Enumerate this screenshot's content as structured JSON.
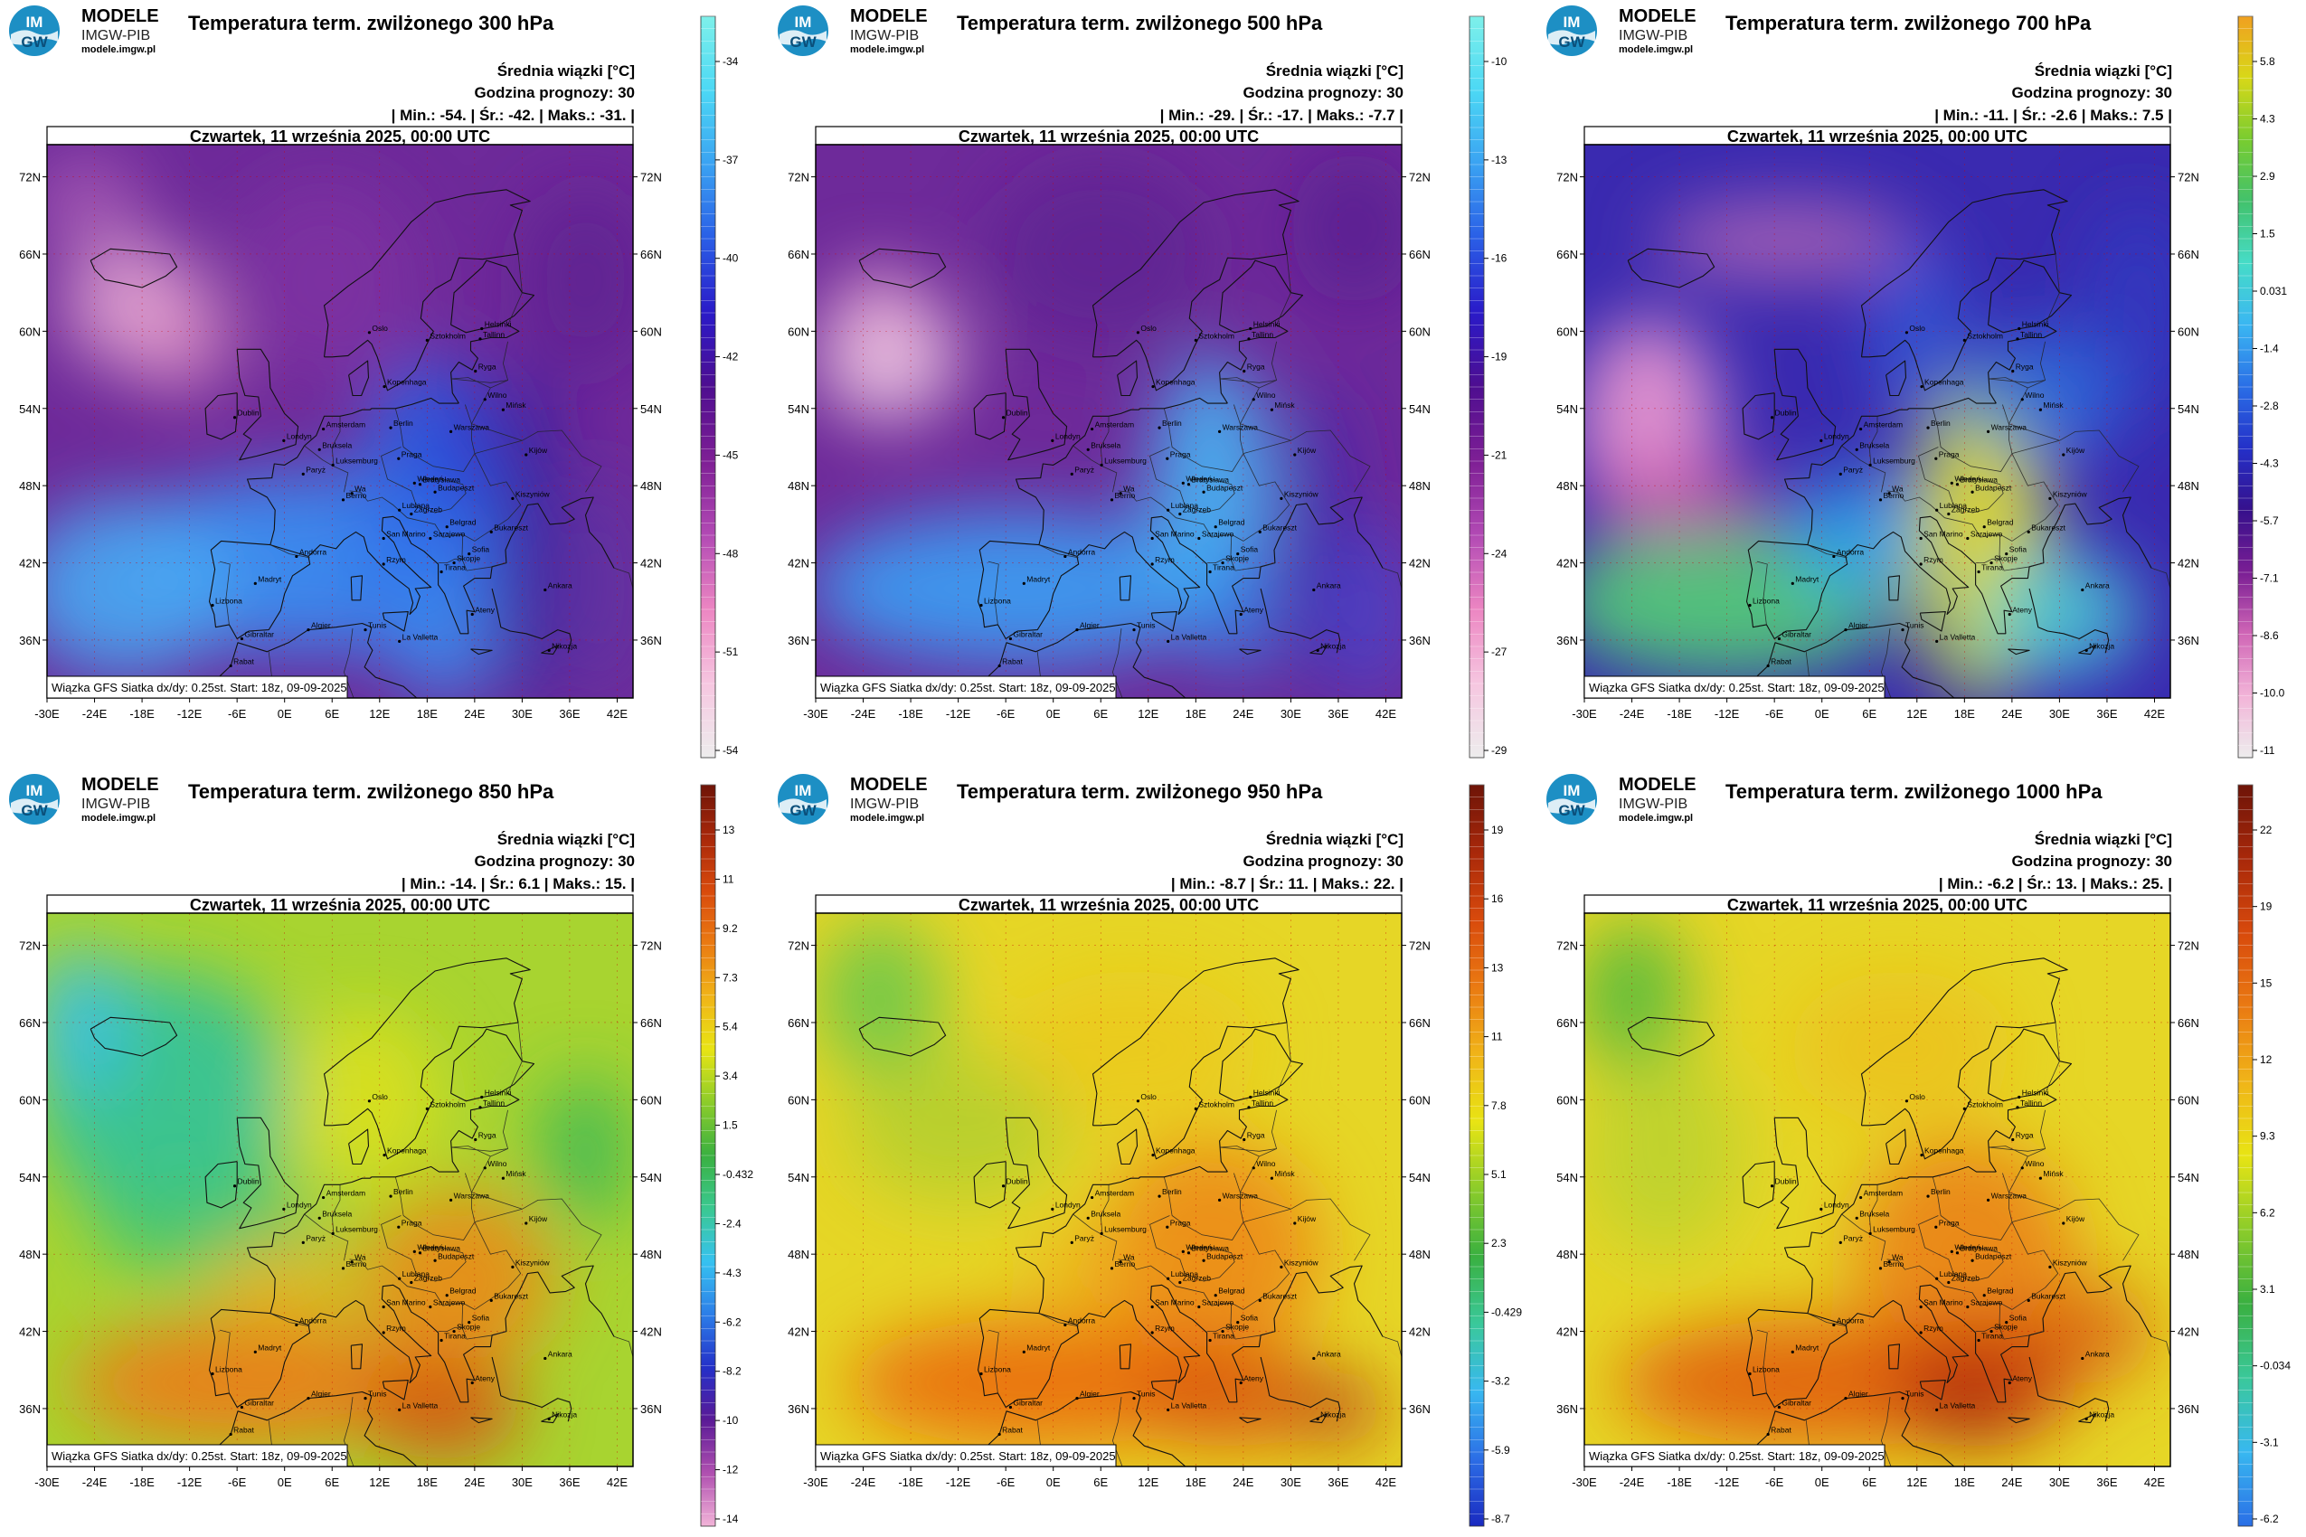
{
  "logo": {
    "badge_top": "IM",
    "badge_bottom": "GW",
    "name": "MODELE",
    "org": "IMGW-PIB",
    "url": "modele.imgw.pl"
  },
  "colors": {
    "legend_bg": "#ffffff",
    "frame": "#000000",
    "grid": "#cc0000"
  },
  "axes": {
    "lon_ticks": [
      "-30E",
      "-24E",
      "-18E",
      "-12E",
      "-6E",
      "0E",
      "6E",
      "12E",
      "18E",
      "24E",
      "30E",
      "36E",
      "42E"
    ],
    "lat_ticks": [
      "72N",
      "66N",
      "60N",
      "54N",
      "48N",
      "42N",
      "36N"
    ]
  },
  "cities": [
    {
      "name": "Oslo",
      "lon": 10.7,
      "lat": 59.9
    },
    {
      "name": "Sztokholm",
      "lon": 18.0,
      "lat": 59.3
    },
    {
      "name": "Helsinki",
      "lon": 24.9,
      "lat": 60.2
    },
    {
      "name": "Tallinn",
      "lon": 24.7,
      "lat": 59.4
    },
    {
      "name": "Ryga",
      "lon": 24.1,
      "lat": 56.9
    },
    {
      "name": "Kopenhaga",
      "lon": 12.6,
      "lat": 55.7
    },
    {
      "name": "Wilno",
      "lon": 25.3,
      "lat": 54.7
    },
    {
      "name": "Dublin",
      "lon": -6.3,
      "lat": 53.3
    },
    {
      "name": "Londyn",
      "lon": -0.1,
      "lat": 51.5
    },
    {
      "name": "Amsterdam",
      "lon": 4.9,
      "lat": 52.4
    },
    {
      "name": "Berlin",
      "lon": 13.4,
      "lat": 52.5
    },
    {
      "name": "Warszawa",
      "lon": 21.0,
      "lat": 52.2
    },
    {
      "name": "Mińsk",
      "lon": 27.6,
      "lat": 53.9
    },
    {
      "name": "Bruksela",
      "lon": 4.4,
      "lat": 50.8
    },
    {
      "name": "Luksemburg",
      "lon": 6.1,
      "lat": 49.6
    },
    {
      "name": "Paryż",
      "lon": 2.35,
      "lat": 48.9
    },
    {
      "name": "Praga",
      "lon": 14.4,
      "lat": 50.1
    },
    {
      "name": "Kijów",
      "lon": 30.5,
      "lat": 50.4
    },
    {
      "name": "Wiedeń",
      "lon": 16.4,
      "lat": 48.2
    },
    {
      "name": "Bratysława",
      "lon": 17.1,
      "lat": 48.1
    },
    {
      "name": "Budapeszt",
      "lon": 19.0,
      "lat": 47.5
    },
    {
      "name": "Berno",
      "lon": 7.4,
      "lat": 46.9
    },
    {
      "name": "Wa",
      "lon": 8.5,
      "lat": 47.4
    },
    {
      "name": "Lublana",
      "lon": 14.5,
      "lat": 46.1
    },
    {
      "name": "Zagrzeb",
      "lon": 16.0,
      "lat": 45.8
    },
    {
      "name": "Kiszyniów",
      "lon": 28.8,
      "lat": 47.0
    },
    {
      "name": "Belgrad",
      "lon": 20.5,
      "lat": 44.8
    },
    {
      "name": "Bukareszt",
      "lon": 26.1,
      "lat": 44.4
    },
    {
      "name": "Sarajewo",
      "lon": 18.4,
      "lat": 43.9
    },
    {
      "name": "San Marino",
      "lon": 12.5,
      "lat": 43.9
    },
    {
      "name": "Andorra",
      "lon": 1.5,
      "lat": 42.5
    },
    {
      "name": "Sofia",
      "lon": 23.3,
      "lat": 42.7
    },
    {
      "name": "Skopje",
      "lon": 21.4,
      "lat": 42.0
    },
    {
      "name": "Rzym",
      "lon": 12.5,
      "lat": 41.9
    },
    {
      "name": "Tirana",
      "lon": 19.8,
      "lat": 41.3
    },
    {
      "name": "Madryt",
      "lon": -3.7,
      "lat": 40.4
    },
    {
      "name": "Ankara",
      "lon": 32.9,
      "lat": 39.9
    },
    {
      "name": "Ateny",
      "lon": 23.7,
      "lat": 38.0
    },
    {
      "name": "Lizbona",
      "lon": -9.1,
      "lat": 38.7
    },
    {
      "name": "Algier",
      "lon": 3.0,
      "lat": 36.8
    },
    {
      "name": "Tunis",
      "lon": 10.2,
      "lat": 36.8
    },
    {
      "name": "La Valletta",
      "lon": 14.5,
      "lat": 35.9
    },
    {
      "name": "Gibraltar",
      "lon": -5.4,
      "lat": 36.1
    },
    {
      "name": "Rabat",
      "lon": -6.8,
      "lat": 34.0
    },
    {
      "name": "Nikozja",
      "lon": 33.4,
      "lat": 35.2
    }
  ],
  "panels": [
    {
      "title": "Temperatura term. zwilżonego 300 hPa",
      "stat_label": "Średnia wiązki [°C]",
      "forecast_hour": "Godzina prognozy: 30",
      "stats": {
        "min": "-54.",
        "avg": "-42.",
        "max": "-31."
      },
      "date": "Czwartek, 11 września 2025, 00:00 UTC",
      "footer": "Wiązka GFS Siatka dx/dy: 0.25st. Start: 18z, 09-09-2025",
      "colorbar": {
        "ticks": [
          "-34",
          "-37",
          "-40",
          "-42",
          "-45",
          "-48",
          "-51",
          "-54"
        ],
        "colors": [
          "#ededed",
          "#f6c6e0",
          "#ec86c2",
          "#b24ab4",
          "#7e1f95",
          "#4e0e90",
          "#2a1ac8",
          "#2a5ee6",
          "#3aa2f2",
          "#4cd8f4",
          "#7ef0ea"
        ]
      },
      "field": {
        "base": "#6e2a9a",
        "blobs": [
          {
            "lon": 3,
            "lat": 42,
            "rx": 24,
            "ry": 7,
            "color": "#3a8cf0",
            "op": 0.95
          },
          {
            "lon": -20,
            "lat": 40,
            "rx": 14,
            "ry": 7,
            "color": "#49a8f2",
            "op": 0.9
          },
          {
            "lon": 18,
            "lat": 46,
            "rx": 9,
            "ry": 12,
            "color": "#2f6ee8",
            "op": 0.85
          },
          {
            "lon": 20,
            "lat": 36,
            "rx": 7,
            "ry": 5,
            "color": "#3c90f0",
            "op": 0.8
          },
          {
            "lon": 21,
            "lat": 51,
            "rx": 5,
            "ry": 6,
            "color": "#243fd6",
            "op": 0.7
          },
          {
            "lon": 31,
            "lat": 44,
            "rx": 4,
            "ry": 14,
            "color": "#2a1aa0",
            "op": 0.75
          },
          {
            "lon": -19,
            "lat": 62,
            "rx": 9,
            "ry": 5,
            "color": "#f0b4d8",
            "op": 0.8
          },
          {
            "lon": -13,
            "lat": 59,
            "rx": 6,
            "ry": 4,
            "color": "#e89ac8",
            "op": 0.7
          },
          {
            "lon": -25,
            "lat": 70,
            "rx": 7,
            "ry": 4,
            "color": "#c070c0",
            "op": 0.6
          },
          {
            "lon": 5,
            "lat": 64,
            "rx": 12,
            "ry": 8,
            "color": "#8a3aa8",
            "op": 0.5
          },
          {
            "lon": 38,
            "lat": 64,
            "rx": 8,
            "ry": 7,
            "color": "#58208e",
            "op": 0.6
          },
          {
            "lon": 40,
            "lat": 40,
            "rx": 6,
            "ry": 9,
            "color": "#5a3aa8",
            "op": 0.55
          }
        ]
      }
    },
    {
      "title": "Temperatura term. zwilżonego 500 hPa",
      "stat_label": "Średnia wiązki [°C]",
      "forecast_hour": "Godzina prognozy: 30",
      "stats": {
        "min": "-29.",
        "avg": "-17.",
        "max": "-7.7"
      },
      "date": "Czwartek, 11 września 2025, 00:00 UTC",
      "footer": "Wiązka GFS Siatka dx/dy: 0.25st. Start: 18z, 09-09-2025",
      "colorbar": {
        "ticks": [
          "-10",
          "-13",
          "-16",
          "-19",
          "-21",
          "-24",
          "-27",
          "-29"
        ],
        "colors": [
          "#ededed",
          "#f6c6e0",
          "#ec86c2",
          "#b24ab4",
          "#7e1f95",
          "#4e0e90",
          "#2a1ac8",
          "#2a5ee6",
          "#3aa2f2",
          "#4cd8f4",
          "#7ef0ea"
        ]
      },
      "field": {
        "base": "#6e2a9a",
        "blobs": [
          {
            "lon": -5,
            "lat": 40,
            "rx": 26,
            "ry": 6,
            "color": "#3c9af0",
            "op": 0.95
          },
          {
            "lon": 20,
            "lat": 47,
            "rx": 8,
            "ry": 11,
            "color": "#46b6f4",
            "op": 0.9
          },
          {
            "lon": 23,
            "lat": 38,
            "rx": 6,
            "ry": 5,
            "color": "#3080ea",
            "op": 0.7
          },
          {
            "lon": 34,
            "lat": 44,
            "rx": 4,
            "ry": 12,
            "color": "#3222b4",
            "op": 0.7
          },
          {
            "lon": -21,
            "lat": 58,
            "rx": 9,
            "ry": 5,
            "color": "#f0c8e2",
            "op": 0.9
          },
          {
            "lon": -22,
            "lat": 62,
            "rx": 6,
            "ry": 3,
            "color": "#e8a8d2",
            "op": 0.7
          },
          {
            "lon": 6,
            "lat": 66,
            "rx": 14,
            "ry": 7,
            "color": "#58208e",
            "op": 0.55
          },
          {
            "lon": 38,
            "lat": 68,
            "rx": 8,
            "ry": 6,
            "color": "#4a1a8e",
            "op": 0.5
          },
          {
            "lon": 40,
            "lat": 38,
            "rx": 6,
            "ry": 7,
            "color": "#3f50d8",
            "op": 0.6
          }
        ]
      }
    },
    {
      "title": "Temperatura term. zwilżonego 700 hPa",
      "stat_label": "Średnia wiązki [°C]",
      "forecast_hour": "Godzina prognozy: 30",
      "stats": {
        "min": "-11.",
        "avg": "-2.6",
        "max": "7.5"
      },
      "date": "Czwartek, 11 września 2025, 00:00 UTC",
      "footer": "Wiązka GFS Siatka dx/dy: 0.25st. Start: 18z, 09-09-2025",
      "colorbar": {
        "ticks": [
          "5.8",
          "4.3",
          "2.9",
          "1.5",
          "0.031",
          "-1.4",
          "-2.8",
          "-4.3",
          "-5.7",
          "-7.1",
          "-8.6",
          "-10.0",
          "-11"
        ],
        "colors": [
          "#ededed",
          "#f2b4d8",
          "#d066b6",
          "#7a1e94",
          "#36108c",
          "#2430c8",
          "#2a6ee6",
          "#3ab6f2",
          "#46dcc8",
          "#42c26c",
          "#78cc30",
          "#d8d818",
          "#f0a020"
        ]
      },
      "field": {
        "base": "#3a2ab0",
        "blobs": [
          {
            "lon": -12,
            "lat": 39,
            "rx": 22,
            "ry": 6,
            "color": "#52c878",
            "op": 0.95
          },
          {
            "lon": 20,
            "lat": 44,
            "rx": 9,
            "ry": 13,
            "color": "#b2d44a",
            "op": 0.95
          },
          {
            "lon": 20,
            "lat": 44,
            "rx": 5,
            "ry": 8,
            "color": "#e6d424",
            "op": 0.9
          },
          {
            "lon": 30,
            "lat": 38,
            "rx": 10,
            "ry": 5,
            "color": "#4acfd8",
            "op": 0.85
          },
          {
            "lon": 4,
            "lat": 44,
            "rx": 8,
            "ry": 5,
            "color": "#2ea8ee",
            "op": 0.85
          },
          {
            "lon": -22,
            "lat": 53,
            "rx": 9,
            "ry": 8,
            "color": "#ee9ad0",
            "op": 0.9
          },
          {
            "lon": -18,
            "lat": 47,
            "rx": 12,
            "ry": 3,
            "color": "#c24aa8",
            "op": 0.8
          },
          {
            "lon": -5,
            "lat": 67,
            "rx": 16,
            "ry": 3,
            "color": "#d078b8",
            "op": 0.7
          },
          {
            "lon": 28,
            "lat": 55,
            "rx": 10,
            "ry": 5,
            "color": "#2a7ee8",
            "op": 0.7
          },
          {
            "lon": 12,
            "lat": 60,
            "rx": 6,
            "ry": 7,
            "color": "#2c6ae6",
            "op": 0.6
          },
          {
            "lon": 40,
            "lat": 62,
            "rx": 7,
            "ry": 8,
            "color": "#2c40c8",
            "op": 0.6
          }
        ]
      }
    },
    {
      "title": "Temperatura term. zwilżonego 850 hPa",
      "stat_label": "Średnia wiązki [°C]",
      "forecast_hour": "Godzina prognozy: 30",
      "stats": {
        "min": "-14.",
        "avg": "6.1",
        "max": "15."
      },
      "date": "Czwartek, 11 września 2025, 00:00 UTC",
      "footer": "Wiązka GFS Siatka dx/dy: 0.25st. Start: 18z, 09-09-2025",
      "colorbar": {
        "ticks": [
          "13",
          "11",
          "9.2",
          "7.3",
          "5.4",
          "3.4",
          "1.5",
          "-0.432",
          "-2.4",
          "-4.3",
          "-6.2",
          "-8.2",
          "-10",
          "-12",
          "-14"
        ],
        "colors": [
          "#f2b4d8",
          "#b050b0",
          "#5a1a96",
          "#2430c8",
          "#2c7ee8",
          "#36c2f0",
          "#3ac890",
          "#3ab040",
          "#8ccc2a",
          "#e8e414",
          "#f0b418",
          "#ea7a12",
          "#d84a0c",
          "#a8280a",
          "#6e1408"
        ]
      },
      "field": {
        "base": "#a8d430",
        "blobs": [
          {
            "lon": -15,
            "lat": 60,
            "rx": 16,
            "ry": 10,
            "color": "#32c29a",
            "op": 0.9
          },
          {
            "lon": -26,
            "lat": 66,
            "rx": 6,
            "ry": 6,
            "color": "#3ac0e4",
            "op": 0.9
          },
          {
            "lon": -10,
            "lat": 50,
            "rx": 14,
            "ry": 4,
            "color": "#3ec476",
            "op": 0.8
          },
          {
            "lon": 38,
            "lat": 56,
            "rx": 6,
            "ry": 6,
            "color": "#34b65a",
            "op": 0.8
          },
          {
            "lon": 10,
            "lat": 60,
            "rx": 10,
            "ry": 7,
            "color": "#e4e21a",
            "op": 0.75
          },
          {
            "lon": 22,
            "lat": 46,
            "rx": 12,
            "ry": 7,
            "color": "#ea8a16",
            "op": 0.9
          },
          {
            "lon": -5,
            "lat": 38,
            "rx": 22,
            "ry": 5,
            "color": "#ec7a14",
            "op": 0.9
          },
          {
            "lon": 20,
            "lat": 36,
            "rx": 10,
            "ry": 4,
            "color": "#d84a0c",
            "op": 0.85
          },
          {
            "lon": 0,
            "lat": 46,
            "rx": 10,
            "ry": 3,
            "color": "#f0b418",
            "op": 0.8
          }
        ]
      }
    },
    {
      "title": "Temperatura term. zwilżonego 950 hPa",
      "stat_label": "Średnia wiązki [°C]",
      "forecast_hour": "Godzina prognozy: 30",
      "stats": {
        "min": "-8.7",
        "avg": "11.",
        "max": "22."
      },
      "date": "Czwartek, 11 września 2025, 00:00 UTC",
      "footer": "Wiązka GFS Siatka dx/dy: 0.25st. Start: 18z, 09-09-2025",
      "colorbar": {
        "ticks": [
          "19",
          "16",
          "13",
          "11",
          "7.8",
          "5.1",
          "2.3",
          "-0.429",
          "-3.2",
          "-5.9",
          "-8.7"
        ],
        "colors": [
          "#1a2ac0",
          "#2c6ee6",
          "#38b8f0",
          "#3ac89a",
          "#3ab040",
          "#8ccc2a",
          "#e8e414",
          "#f0b418",
          "#ea7a12",
          "#d84a0c",
          "#a8280a",
          "#6e1408"
        ]
      },
      "field": {
        "base": "#e6d626",
        "blobs": [
          {
            "lon": -22,
            "lat": 68,
            "rx": 8,
            "ry": 6,
            "color": "#6cc84a",
            "op": 0.9
          },
          {
            "lon": -12,
            "lat": 58,
            "rx": 14,
            "ry": 6,
            "color": "#9ccc34",
            "op": 0.6
          },
          {
            "lon": 10,
            "lat": 64,
            "rx": 16,
            "ry": 6,
            "color": "#f0c21c",
            "op": 0.5
          },
          {
            "lon": 20,
            "lat": 48,
            "rx": 14,
            "ry": 9,
            "color": "#ec8a18",
            "op": 0.9
          },
          {
            "lon": -2,
            "lat": 38,
            "rx": 24,
            "ry": 5,
            "color": "#ea7012",
            "op": 0.95
          },
          {
            "lon": 22,
            "lat": 37,
            "rx": 12,
            "ry": 4,
            "color": "#d8500e",
            "op": 0.85
          },
          {
            "lon": 36,
            "lat": 36,
            "rx": 6,
            "ry": 3,
            "color": "#b4300a",
            "op": 0.7
          },
          {
            "lon": 4,
            "lat": 47,
            "rx": 7,
            "ry": 3,
            "color": "#f0a81c",
            "op": 0.7
          }
        ]
      }
    },
    {
      "title": "Temperatura term. zwilżonego 1000 hPa",
      "stat_label": "Średnia wiązki [°C]",
      "forecast_hour": "Godzina prognozy: 30",
      "stats": {
        "min": "-6.2",
        "avg": "13.",
        "max": "25."
      },
      "date": "Czwartek, 11 września 2025, 00:00 UTC",
      "footer": "Wiązka GFS Siatka dx/dy: 0.25st. Start: 18z, 09-09-2025",
      "colorbar": {
        "ticks": [
          "22",
          "19",
          "15",
          "12",
          "9.3",
          "6.2",
          "3.1",
          "-0.034",
          "-3.1",
          "-6.2"
        ],
        "colors": [
          "#2a6ee6",
          "#38b8f0",
          "#3ac89a",
          "#3ab040",
          "#8ccc2a",
          "#e8e414",
          "#f0b418",
          "#ea7a12",
          "#d84a0c",
          "#a8280a",
          "#6e1408"
        ]
      },
      "field": {
        "base": "#e6d626",
        "blobs": [
          {
            "lon": -24,
            "lat": 68,
            "rx": 7,
            "ry": 6,
            "color": "#4ab840",
            "op": 0.85
          },
          {
            "lon": -20,
            "lat": 56,
            "rx": 10,
            "ry": 8,
            "color": "#a8d030",
            "op": 0.6
          },
          {
            "lon": 18,
            "lat": 48,
            "rx": 14,
            "ry": 9,
            "color": "#ea8216",
            "op": 0.9
          },
          {
            "lon": 0,
            "lat": 38,
            "rx": 26,
            "ry": 5,
            "color": "#e2620e",
            "op": 0.95
          },
          {
            "lon": 20,
            "lat": 38,
            "rx": 12,
            "ry": 5,
            "color": "#c8400c",
            "op": 0.9
          },
          {
            "lon": 18,
            "lat": 36,
            "rx": 6,
            "ry": 3,
            "color": "#a8280a",
            "op": 0.8
          },
          {
            "lon": 10,
            "lat": 64,
            "rx": 14,
            "ry": 6,
            "color": "#f0b41c",
            "op": 0.5
          },
          {
            "lon": 34,
            "lat": 42,
            "rx": 8,
            "ry": 4,
            "color": "#d8500e",
            "op": 0.7
          }
        ]
      }
    }
  ]
}
